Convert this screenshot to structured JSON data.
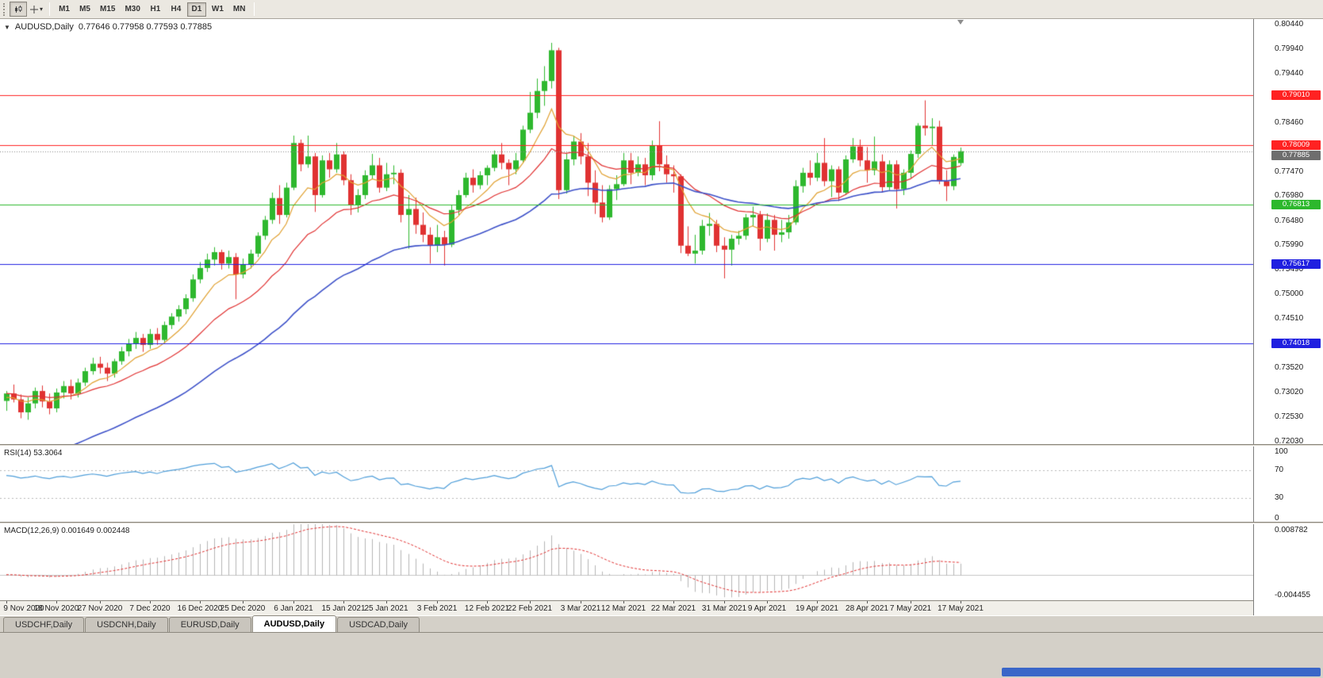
{
  "toolbar": {
    "timeframes": [
      "M1",
      "M5",
      "M15",
      "M30",
      "H1",
      "H4",
      "D1",
      "W1",
      "MN"
    ],
    "active_timeframe": "D1"
  },
  "chart": {
    "overlay": {
      "dropdown_glyph": "▼",
      "symbol": "AUDUSD,Daily",
      "ohlc": "0.77646 0.77958 0.77593 0.77885"
    }
  },
  "panels": {
    "rsi_label": "RSI(14) 53.3064",
    "macd_label": "MACD(12,26,9) 0.001649 0.002448"
  },
  "price_axis": {
    "current": {
      "value": 0.77885,
      "text": "0.77885",
      "color": "#6e6e6e"
    }
  },
  "bottom_tabs": [
    {
      "label": "USDCHF,Daily",
      "active": false
    },
    {
      "label": "USDCNH,Daily",
      "active": false
    },
    {
      "label": "EURUSD,Daily",
      "active": false
    },
    {
      "label": "AUDUSD,Daily",
      "active": true
    },
    {
      "label": "USDCAD,Daily",
      "active": false
    }
  ],
  "colors": {
    "candle_up": "#2eb82e",
    "candle_down": "#e03232",
    "hline_red": "#ff2222",
    "hline_green": "#2db82d",
    "hline_blue": "#2020e0"
  },
  "chart_data": {
    "type": "candlestick",
    "title": "AUDUSD,Daily",
    "ohlc_current": {
      "open": 0.77646,
      "high": 0.77958,
      "low": 0.77593,
      "close": 0.77885
    },
    "y_range": [
      0.7198,
      0.8055
    ],
    "price_grid": [
      0.8044,
      0.7994,
      0.7944,
      0.7895,
      0.7846,
      0.7796,
      0.7747,
      0.7698,
      0.7648,
      0.7599,
      0.7549,
      0.75,
      0.7451,
      0.7401,
      0.7352,
      0.7302,
      0.7253,
      0.7203
    ],
    "hlines": [
      {
        "value": 0.7901,
        "label": "0.79010",
        "color": "#ff2222"
      },
      {
        "value": 0.78009,
        "label": "0.78009",
        "color": "#ff2222"
      },
      {
        "value": 0.76813,
        "label": "0.76813",
        "color": "#2db82d"
      },
      {
        "value": 0.75617,
        "label": "0.75617",
        "color": "#2020e0"
      },
      {
        "value": 0.74018,
        "label": "0.74018",
        "color": "#2020e0"
      }
    ],
    "moving_averages": [
      {
        "period": 8,
        "color": "#e0a030",
        "seed": 0.729,
        "width": 1.2
      },
      {
        "period": 20,
        "color": "#e03030",
        "seed": 0.73,
        "width": 1.2
      },
      {
        "period": 45,
        "color": "#3c50c8",
        "seed": 0.714,
        "width": 1.6
      }
    ],
    "x_ticks": [
      {
        "i": 0,
        "label": "9 Nov 2020"
      },
      {
        "i": 7,
        "label": "18 Nov 2020"
      },
      {
        "i": 13,
        "label": "27 Nov 2020"
      },
      {
        "i": 20,
        "label": "7 Dec 2020"
      },
      {
        "i": 27,
        "label": "16 Dec 2020"
      },
      {
        "i": 33,
        "label": "25 Dec 2020"
      },
      {
        "i": 40,
        "label": "6 Jan 2021"
      },
      {
        "i": 47,
        "label": "15 Jan 2021"
      },
      {
        "i": 53,
        "label": "25 Jan 2021"
      },
      {
        "i": 60,
        "label": "3 Feb 2021"
      },
      {
        "i": 67,
        "label": "12 Feb 2021"
      },
      {
        "i": 73,
        "label": "22 Feb 2021"
      },
      {
        "i": 80,
        "label": "3 Mar 2021"
      },
      {
        "i": 86,
        "label": "12 Mar 2021"
      },
      {
        "i": 93,
        "label": "22 Mar 2021"
      },
      {
        "i": 100,
        "label": "31 Mar 2021"
      },
      {
        "i": 106,
        "label": "9 Apr 2021"
      },
      {
        "i": 113,
        "label": "19 Apr 2021"
      },
      {
        "i": 120,
        "label": "28 Apr 2021"
      },
      {
        "i": 126,
        "label": "7 May 2021"
      },
      {
        "i": 133,
        "label": "17 May 2021"
      }
    ],
    "candles": [
      [
        0.7285,
        0.7305,
        0.7265,
        0.73
      ],
      [
        0.73,
        0.7318,
        0.7282,
        0.7288
      ],
      [
        0.7288,
        0.7298,
        0.725,
        0.7262
      ],
      [
        0.7262,
        0.7292,
        0.7247,
        0.728
      ],
      [
        0.728,
        0.7312,
        0.727,
        0.7305
      ],
      [
        0.7305,
        0.7316,
        0.7272,
        0.7284
      ],
      [
        0.7284,
        0.73,
        0.7258,
        0.727
      ],
      [
        0.727,
        0.731,
        0.7262,
        0.7302
      ],
      [
        0.7302,
        0.7325,
        0.729,
        0.7315
      ],
      [
        0.7315,
        0.7328,
        0.7288,
        0.73
      ],
      [
        0.73,
        0.733,
        0.7292,
        0.7322
      ],
      [
        0.7322,
        0.7352,
        0.7315,
        0.7345
      ],
      [
        0.7345,
        0.7372,
        0.7338,
        0.736
      ],
      [
        0.736,
        0.7374,
        0.734,
        0.7352
      ],
      [
        0.7352,
        0.7362,
        0.7325,
        0.734
      ],
      [
        0.734,
        0.737,
        0.7332,
        0.7365
      ],
      [
        0.7365,
        0.7394,
        0.7358,
        0.7385
      ],
      [
        0.7385,
        0.741,
        0.7375,
        0.74
      ],
      [
        0.74,
        0.7424,
        0.739,
        0.7412
      ],
      [
        0.7412,
        0.742,
        0.7384,
        0.7398
      ],
      [
        0.7398,
        0.743,
        0.739,
        0.742
      ],
      [
        0.742,
        0.7432,
        0.7398,
        0.7408
      ],
      [
        0.7408,
        0.7445,
        0.74,
        0.7438
      ],
      [
        0.7438,
        0.7462,
        0.743,
        0.7455
      ],
      [
        0.7455,
        0.7478,
        0.7445,
        0.747
      ],
      [
        0.747,
        0.75,
        0.746,
        0.7492
      ],
      [
        0.7492,
        0.754,
        0.7485,
        0.753
      ],
      [
        0.753,
        0.7565,
        0.7522,
        0.7553
      ],
      [
        0.7553,
        0.7582,
        0.7545,
        0.757
      ],
      [
        0.757,
        0.7595,
        0.7558,
        0.7585
      ],
      [
        0.7585,
        0.759,
        0.755,
        0.7562
      ],
      [
        0.7562,
        0.7588,
        0.7552,
        0.7575
      ],
      [
        0.7575,
        0.7583,
        0.749,
        0.754
      ],
      [
        0.754,
        0.7572,
        0.7532,
        0.756
      ],
      [
        0.756,
        0.759,
        0.7552,
        0.7582
      ],
      [
        0.7582,
        0.7625,
        0.7575,
        0.7618
      ],
      [
        0.7618,
        0.7658,
        0.761,
        0.765
      ],
      [
        0.765,
        0.7705,
        0.7642,
        0.7694
      ],
      [
        0.7694,
        0.772,
        0.7642,
        0.766
      ],
      [
        0.766,
        0.7725,
        0.7655,
        0.7715
      ],
      [
        0.7715,
        0.782,
        0.771,
        0.7805
      ],
      [
        0.7805,
        0.7812,
        0.7748,
        0.7762
      ],
      [
        0.7762,
        0.782,
        0.7755,
        0.7778
      ],
      [
        0.7778,
        0.7785,
        0.7666,
        0.77
      ],
      [
        0.77,
        0.778,
        0.7695,
        0.777
      ],
      [
        0.777,
        0.7785,
        0.7735,
        0.7752
      ],
      [
        0.7752,
        0.7805,
        0.7745,
        0.7782
      ],
      [
        0.7782,
        0.7788,
        0.772,
        0.773
      ],
      [
        0.773,
        0.7742,
        0.766,
        0.768
      ],
      [
        0.768,
        0.7712,
        0.7665,
        0.77
      ],
      [
        0.77,
        0.775,
        0.7692,
        0.774
      ],
      [
        0.774,
        0.7783,
        0.7732,
        0.776
      ],
      [
        0.776,
        0.7775,
        0.7705,
        0.7715
      ],
      [
        0.7715,
        0.7765,
        0.7708,
        0.7742
      ],
      [
        0.7742,
        0.776,
        0.7722,
        0.7745
      ],
      [
        0.7745,
        0.7752,
        0.7645,
        0.766
      ],
      [
        0.766,
        0.77,
        0.7592,
        0.7672
      ],
      [
        0.7672,
        0.7695,
        0.7622,
        0.764
      ],
      [
        0.764,
        0.7665,
        0.7605,
        0.762
      ],
      [
        0.762,
        0.7635,
        0.7562,
        0.7598
      ],
      [
        0.7598,
        0.764,
        0.7585,
        0.7615
      ],
      [
        0.7615,
        0.7628,
        0.7558,
        0.76
      ],
      [
        0.76,
        0.768,
        0.7595,
        0.767
      ],
      [
        0.767,
        0.771,
        0.766,
        0.77
      ],
      [
        0.77,
        0.7745,
        0.7695,
        0.7735
      ],
      [
        0.7735,
        0.7752,
        0.7705,
        0.772
      ],
      [
        0.772,
        0.7748,
        0.7712,
        0.774
      ],
      [
        0.774,
        0.776,
        0.772,
        0.7755
      ],
      [
        0.7755,
        0.779,
        0.7748,
        0.7782
      ],
      [
        0.7782,
        0.7805,
        0.7752,
        0.7765
      ],
      [
        0.7765,
        0.7772,
        0.772,
        0.7752
      ],
      [
        0.7752,
        0.7785,
        0.7742,
        0.777
      ],
      [
        0.777,
        0.784,
        0.7765,
        0.7832
      ],
      [
        0.7832,
        0.7908,
        0.7825,
        0.7866
      ],
      [
        0.7866,
        0.7935,
        0.7855,
        0.791
      ],
      [
        0.791,
        0.796,
        0.788,
        0.793
      ],
      [
        0.793,
        0.8007,
        0.7915,
        0.7992
      ],
      [
        0.7992,
        0.7997,
        0.7692,
        0.771
      ],
      [
        0.771,
        0.7784,
        0.7703,
        0.7772
      ],
      [
        0.7772,
        0.782,
        0.776,
        0.7808
      ],
      [
        0.7808,
        0.7825,
        0.7762,
        0.7778
      ],
      [
        0.7778,
        0.7805,
        0.7698,
        0.7725
      ],
      [
        0.7725,
        0.775,
        0.7662,
        0.7685
      ],
      [
        0.7685,
        0.772,
        0.7645,
        0.7655
      ],
      [
        0.7655,
        0.772,
        0.765,
        0.7712
      ],
      [
        0.7712,
        0.774,
        0.769,
        0.7722
      ],
      [
        0.7722,
        0.7785,
        0.7718,
        0.777
      ],
      [
        0.777,
        0.7785,
        0.7722,
        0.7745
      ],
      [
        0.7745,
        0.7778,
        0.7738,
        0.7762
      ],
      [
        0.7762,
        0.7775,
        0.772,
        0.774
      ],
      [
        0.774,
        0.781,
        0.773,
        0.78
      ],
      [
        0.78,
        0.7849,
        0.7748,
        0.7762
      ],
      [
        0.7762,
        0.778,
        0.7725,
        0.7742
      ],
      [
        0.7742,
        0.776,
        0.7705,
        0.7738
      ],
      [
        0.7738,
        0.7742,
        0.7583,
        0.7598
      ],
      [
        0.7598,
        0.7637,
        0.7577,
        0.7582
      ],
      [
        0.7582,
        0.762,
        0.7562,
        0.7588
      ],
      [
        0.7588,
        0.765,
        0.758,
        0.7638
      ],
      [
        0.7638,
        0.7664,
        0.7618,
        0.7642
      ],
      [
        0.7642,
        0.765,
        0.7585,
        0.7598
      ],
      [
        0.7598,
        0.7615,
        0.7532,
        0.759
      ],
      [
        0.759,
        0.762,
        0.7558,
        0.7612
      ],
      [
        0.7612,
        0.7628,
        0.76,
        0.7618
      ],
      [
        0.7618,
        0.7662,
        0.761,
        0.7655
      ],
      [
        0.7655,
        0.7677,
        0.7637,
        0.766
      ],
      [
        0.766,
        0.7668,
        0.7588,
        0.7612
      ],
      [
        0.7612,
        0.7663,
        0.7605,
        0.765
      ],
      [
        0.765,
        0.766,
        0.7588,
        0.762
      ],
      [
        0.762,
        0.765,
        0.7605,
        0.7625
      ],
      [
        0.7625,
        0.766,
        0.7612,
        0.7645
      ],
      [
        0.7645,
        0.773,
        0.764,
        0.7718
      ],
      [
        0.7718,
        0.7755,
        0.7705,
        0.7745
      ],
      [
        0.7745,
        0.777,
        0.772,
        0.7735
      ],
      [
        0.7735,
        0.7785,
        0.7728,
        0.7765
      ],
      [
        0.7765,
        0.7815,
        0.7718,
        0.7728
      ],
      [
        0.7728,
        0.776,
        0.7696,
        0.7752
      ],
      [
        0.7752,
        0.7758,
        0.7688,
        0.7705
      ],
      [
        0.7705,
        0.778,
        0.77,
        0.7772
      ],
      [
        0.7772,
        0.7815,
        0.7765,
        0.7798
      ],
      [
        0.7798,
        0.7812,
        0.7758,
        0.777
      ],
      [
        0.777,
        0.7797,
        0.7725,
        0.775
      ],
      [
        0.775,
        0.7818,
        0.774,
        0.7768
      ],
      [
        0.7768,
        0.7782,
        0.7705,
        0.7716
      ],
      [
        0.7716,
        0.777,
        0.771,
        0.7762
      ],
      [
        0.7762,
        0.777,
        0.7673,
        0.7712
      ],
      [
        0.7712,
        0.7752,
        0.77,
        0.7745
      ],
      [
        0.7745,
        0.779,
        0.7735,
        0.7783
      ],
      [
        0.7783,
        0.7845,
        0.7775,
        0.784
      ],
      [
        0.784,
        0.7891,
        0.782,
        0.7835
      ],
      [
        0.7835,
        0.7855,
        0.78,
        0.7838
      ],
      [
        0.7838,
        0.785,
        0.7722,
        0.7728
      ],
      [
        0.7728,
        0.775,
        0.7688,
        0.7718
      ],
      [
        0.7718,
        0.7782,
        0.771,
        0.7777
      ],
      [
        0.77646,
        0.77958,
        0.77593,
        0.77885
      ]
    ],
    "indicators": {
      "rsi": {
        "period": 14,
        "value": 53.3064,
        "levels": [
          100,
          70,
          30,
          0
        ],
        "color": "#4f9ed9"
      },
      "macd": {
        "fast": 12,
        "slow": 26,
        "signal": 9,
        "value": 0.001649,
        "signal_value": 0.002448,
        "scale_max": 0.008782,
        "scale_min": -0.004455,
        "histogram_color": "#b4b4b4",
        "signal_color": "#e03030"
      }
    }
  }
}
